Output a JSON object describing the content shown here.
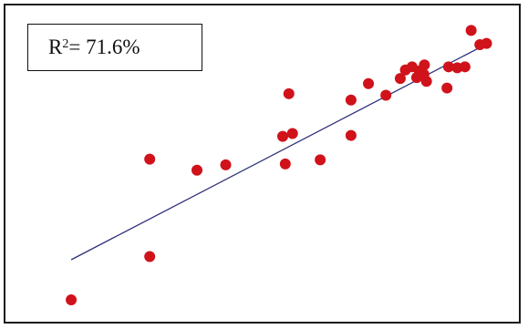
{
  "chart_data": {
    "type": "scatter",
    "title": "",
    "xlabel": "",
    "ylabel": "",
    "xlim": [
      0,
      100
    ],
    "ylim": [
      0,
      100
    ],
    "grid": false,
    "annotation": {
      "label": "R",
      "superscript": "2",
      "value_text": " = 71.6%"
    },
    "series": [
      {
        "kind": "points",
        "color": "#d0121b",
        "x": [
          12.8,
          28.1,
          28.1,
          37.3,
          42.9,
          54.5,
          54.0,
          55.9,
          55.2,
          61.3,
          67.3,
          67.3,
          70.7,
          74.1,
          76.9,
          77.9,
          79.2,
          80.1,
          80.6,
          80.9,
          81.5,
          81.6,
          82.0,
          86.0,
          86.3,
          88.0,
          89.5,
          90.7,
          92.4,
          93.7
        ],
        "y": [
          6.9,
          20.6,
          51.4,
          47.9,
          49.6,
          49.9,
          58.6,
          59.5,
          72.1,
          51.2,
          58.9,
          70.1,
          75.3,
          71.6,
          76.9,
          79.6,
          80.6,
          77.2,
          79.3,
          77.9,
          78.2,
          81.2,
          76.0,
          73.9,
          80.6,
          80.3,
          80.6,
          92.1,
          87.6,
          88.0
        ]
      },
      {
        "kind": "line",
        "color": "#2b2f7a",
        "x": [
          12.8,
          93.7
        ],
        "y": [
          19.6,
          87.8
        ]
      }
    ]
  }
}
